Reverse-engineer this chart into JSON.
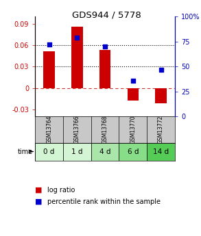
{
  "title": "GDS944 / 5778",
  "samples": [
    "GSM13764",
    "GSM13766",
    "GSM13768",
    "GSM13770",
    "GSM13772"
  ],
  "time_labels": [
    "0 d",
    "1 d",
    "4 d",
    "6 d",
    "14 d"
  ],
  "log_ratio": [
    0.051,
    0.086,
    0.053,
    -0.018,
    -0.022
  ],
  "percentile_rank": [
    72,
    79,
    70,
    36,
    47
  ],
  "ylim_left": [
    -0.04,
    0.1
  ],
  "ylim_right": [
    0,
    100
  ],
  "yticks_left": [
    -0.03,
    0,
    0.03,
    0.06,
    0.09
  ],
  "yticks_right": [
    0,
    25,
    50,
    75,
    100
  ],
  "bar_color": "#cc0000",
  "dot_color": "#0000cc",
  "left_tick_color": "#cc0000",
  "right_tick_color": "#0000bb",
  "zero_line_color": "#cc3333",
  "dotted_line_color": "#000000",
  "sample_bg": "#c8c8c8",
  "time_bg_colors": [
    "#d4f5d4",
    "#d4f5d4",
    "#aae5aa",
    "#88dd88",
    "#55cc55"
  ],
  "bar_width": 0.4,
  "dot_size": 25,
  "legend_bar_color": "#cc0000",
  "legend_dot_color": "#0000cc"
}
